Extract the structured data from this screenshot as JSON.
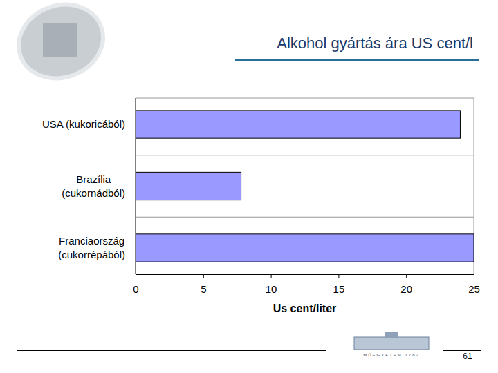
{
  "chart_data": {
    "type": "bar",
    "orientation": "horizontal",
    "title": "Alkohol gyártás ára US cent/l",
    "categories": [
      "USA (kukoricából)",
      "Brazília (cukornádból)",
      "Franciaország (cukorrépából)"
    ],
    "values": [
      24,
      7.8,
      25
    ],
    "color": "#9999ff",
    "xlim": [
      0,
      25
    ],
    "xticks": [
      0,
      5,
      10,
      15,
      20,
      25
    ],
    "x_label": "Us cent/liter",
    "grid": false
  },
  "page": {
    "number": "61",
    "logo_text": "MŰEGYETEM 1782"
  }
}
